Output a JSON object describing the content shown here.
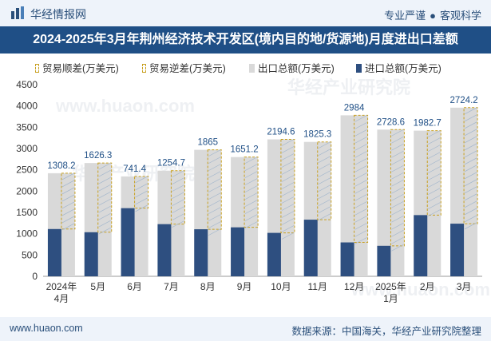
{
  "header": {
    "brand": "华经情报网",
    "tagline_left": "专业严谨",
    "tagline_sep": "●",
    "tagline_right": "客观科学"
  },
  "chart_title": "2024-2025年3月年荆州经济技术开发区(境内目的地/货源地)月度进出口差额",
  "legend": {
    "surplus": "贸易顺差(万美元)",
    "deficit": "贸易逆差(万美元)",
    "export": "出口总额(万美元)",
    "import": "进口总额(万美元)"
  },
  "watermarks": [
    "华经产业研究院",
    "www.huaon.com",
    "华经产业研究院",
    "www.huaon.com"
  ],
  "footer": {
    "url": "www.huaon.com",
    "source": "数据来源：中国海关，华经产业研究院整理"
  },
  "colors": {
    "export": "#d9d9d9",
    "import": "#2e4f80",
    "surplus_border": "#c8a020",
    "title_bg": "#1f4f86"
  },
  "chart_data": {
    "type": "bar",
    "title": "2024-2025年3月年荆州经济技术开发区(境内目的地/货源地)月度进出口差额",
    "categories": [
      [
        "2024年",
        "4月"
      ],
      [
        "5月"
      ],
      [
        "6月"
      ],
      [
        "7月"
      ],
      [
        "8月"
      ],
      [
        "9月"
      ],
      [
        "10月"
      ],
      [
        "11月"
      ],
      [
        "12月"
      ],
      [
        "2025年",
        "1月"
      ],
      [
        "2月"
      ],
      [
        "3月"
      ]
    ],
    "ylim": [
      0,
      4500
    ],
    "yticks": [
      0,
      500,
      1000,
      1500,
      2000,
      2500,
      3000,
      3500,
      4000,
      4500
    ],
    "series": [
      {
        "name": "出口总额(万美元)",
        "values": [
          2420,
          2660,
          2345,
          2480,
          2970,
          2800,
          3215,
          3155,
          3780,
          3445,
          3420,
          3960
        ]
      },
      {
        "name": "进口总额(万美元)",
        "values": [
          1110,
          1035,
          1600,
          1225,
          1105,
          1150,
          1020,
          1330,
          796,
          716,
          1437,
          1236
        ]
      },
      {
        "name": "贸易顺差(万美元)",
        "values": [
          1308.2,
          1626.3,
          741.4,
          1254.7,
          1865,
          1651.2,
          2194.6,
          1825.3,
          2984,
          2728.6,
          1982.7,
          2724.2
        ]
      }
    ],
    "data_labels": [
      "1308.2",
      "1626.3",
      "741.4",
      "1254.7",
      "1865",
      "1651.2",
      "2194.6",
      "1825.3",
      "2984",
      "2728.6",
      "1982.7",
      "2724.2"
    ]
  }
}
